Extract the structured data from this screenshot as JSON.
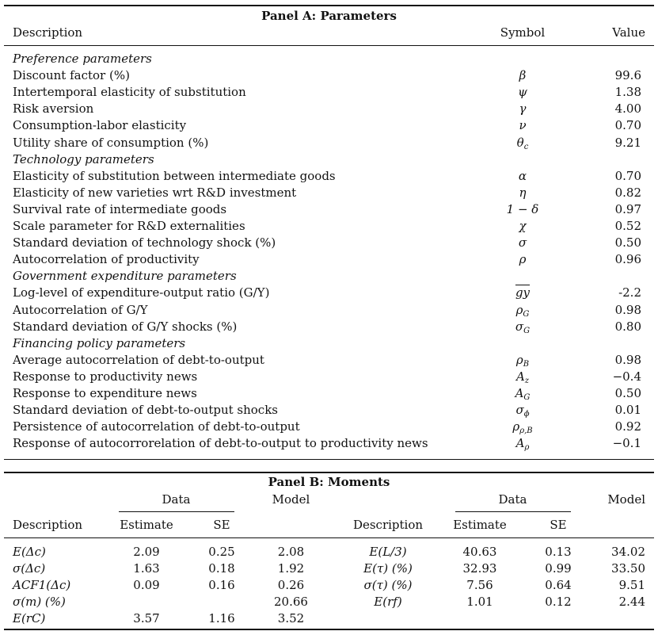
{
  "panel_a": {
    "title": "Panel A: Parameters",
    "col_description": "Description",
    "col_symbol": "Symbol",
    "col_value": "Value",
    "rows": [
      {
        "type": "section",
        "label": "Preference parameters"
      },
      {
        "type": "row",
        "label": "Discount factor (%)",
        "symbol": "β",
        "value": "99.6"
      },
      {
        "type": "row",
        "label": "Intertemporal elasticity of substitution",
        "symbol": "ψ",
        "value": "1.38"
      },
      {
        "type": "row",
        "label": "Risk aversion",
        "symbol": "γ",
        "value": "4.00"
      },
      {
        "type": "row",
        "label": "Consumption-labor elasticity",
        "symbol": "ν",
        "value": "0.70"
      },
      {
        "type": "row",
        "label": "Utility share of consumption (%)",
        "symbol": "θ",
        "symbol_sub": "c",
        "value": "9.21"
      },
      {
        "type": "section",
        "label": "Technology parameters"
      },
      {
        "type": "row",
        "label": "Elasticity of substitution between intermediate goods",
        "symbol": "α",
        "value": "0.70"
      },
      {
        "type": "row",
        "label": "Elasticity of new varieties wrt R&D investment",
        "symbol": "η",
        "value": "0.82"
      },
      {
        "type": "row",
        "label": "Survival rate of intermediate goods",
        "symbol": "1 − δ",
        "value": "0.97"
      },
      {
        "type": "row",
        "label": "Scale parameter for R&D externalities",
        "symbol": "χ",
        "value": "0.52"
      },
      {
        "type": "row",
        "label": "Standard deviation of technology shock (%)",
        "symbol": "σ",
        "value": "0.50"
      },
      {
        "type": "row",
        "label": "Autocorrelation of productivity",
        "symbol": "ρ",
        "value": "0.96"
      },
      {
        "type": "section",
        "label": "Government expenditure parameters"
      },
      {
        "type": "row",
        "label": "Log-level of expenditure-output ratio (G/Y)",
        "symbol": "gy",
        "overline": true,
        "value": "-2.2"
      },
      {
        "type": "row",
        "label": "Autocorrelation of G/Y",
        "symbol": "ρ",
        "symbol_sub": "G",
        "value": "0.98"
      },
      {
        "type": "row",
        "label": "Standard deviation of G/Y shocks (%)",
        "symbol": "σ",
        "symbol_sub": "G",
        "value": "0.80"
      },
      {
        "type": "section",
        "label": "Financing policy parameters"
      },
      {
        "type": "row",
        "label": "Average autocorrelation of debt-to-output",
        "symbol": "ρ",
        "symbol_sub": "B",
        "value": "0.98"
      },
      {
        "type": "row",
        "label": "Response to productivity news",
        "symbol": "A",
        "symbol_sub": "z",
        "value": "−0.4"
      },
      {
        "type": "row",
        "label": "Response to expenditure news",
        "symbol": "A",
        "symbol_sub": "G",
        "value": "0.50"
      },
      {
        "type": "row",
        "label": "Standard deviation of debt-to-output shocks",
        "symbol": "σ",
        "symbol_sub": "ϕ",
        "value": "0.01"
      },
      {
        "type": "row",
        "label": "Persistence of autocorrelation of debt-to-output",
        "symbol": "ρ",
        "symbol_sub": "ρ,B",
        "value": "0.92"
      },
      {
        "type": "row",
        "label": "Response of autocorrorelation of debt-to-output to productivity news",
        "symbol": "A",
        "symbol_sub": "ρ",
        "value": "−0.1"
      }
    ]
  },
  "panel_b": {
    "title": "Panel B: Moments",
    "group_data": "Data",
    "group_model": "Model",
    "col_description": "Description",
    "col_estimate": "Estimate",
    "col_se": "SE",
    "rows": [
      {
        "left": {
          "desc": "E(Δc)",
          "est": "2.09",
          "se": "0.25",
          "model": "2.08"
        },
        "right": {
          "desc": "E(L/3)",
          "est": "40.63",
          "se": "0.13",
          "model": "34.02"
        }
      },
      {
        "left": {
          "desc": "σ(Δc)",
          "est": "1.63",
          "se": "0.18",
          "model": "1.92"
        },
        "right": {
          "desc": "E(τ) (%)",
          "est": "32.93",
          "se": "0.99",
          "model": "33.50"
        }
      },
      {
        "left": {
          "desc": "ACF1(Δc)",
          "est": "0.09",
          "se": "0.16",
          "model": "0.26"
        },
        "right": {
          "desc": "σ(τ) (%)",
          "est": "7.56",
          "se": "0.64",
          "model": "9.51"
        }
      },
      {
        "left": {
          "desc": "σ(m) (%)",
          "est": "",
          "se": "",
          "model": "20.66"
        },
        "right": {
          "desc": "E(rf)",
          "est": "1.01",
          "se": "0.12",
          "model": "2.44"
        }
      },
      {
        "left": {
          "desc": "E(rC)",
          "est": "3.57",
          "se": "1.16",
          "model": "3.52"
        },
        "right": {
          "desc": "",
          "est": "",
          "se": "",
          "model": ""
        }
      }
    ]
  }
}
